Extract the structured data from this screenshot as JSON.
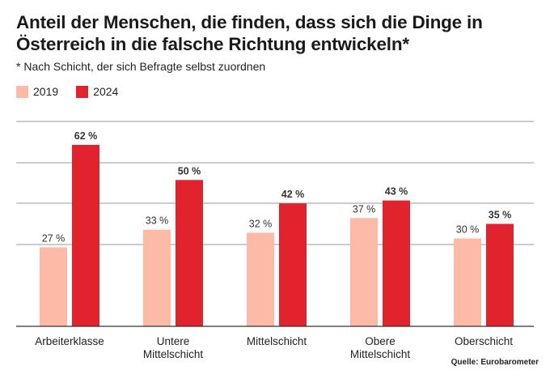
{
  "header": {
    "title": "Anteil der Menschen, die finden, dass sich die Dinge in Österreich in die falsche Richtung entwickeln*",
    "subtitle": "* Nach Schicht, der sich Befragte selbst zuordnen"
  },
  "source": "Quelle: Eurobarometer",
  "colors": {
    "y2019": "#fdbaa6",
    "y2024": "#e1232d",
    "grid": "#999999"
  },
  "chart_data": {
    "type": "bar",
    "categories": [
      [
        "Arbeiterklasse"
      ],
      [
        "Untere",
        "Mittelschicht"
      ],
      [
        "Mittelschicht"
      ],
      [
        "Obere",
        "Mittelschicht"
      ],
      [
        "Oberschicht"
      ]
    ],
    "series": [
      {
        "name": "2019",
        "values": [
          27,
          33,
          32,
          37,
          30
        ],
        "labels": [
          "27 %",
          "33 %",
          "32 %",
          "37 %",
          "30 %"
        ]
      },
      {
        "name": "2024",
        "values": [
          62,
          50,
          42,
          43,
          35
        ],
        "labels": [
          "62 %",
          "50 %",
          "42 %",
          "43 %",
          "35 %"
        ]
      }
    ],
    "ylim": [
      0,
      70
    ],
    "grid": true,
    "legend": "top-left"
  }
}
